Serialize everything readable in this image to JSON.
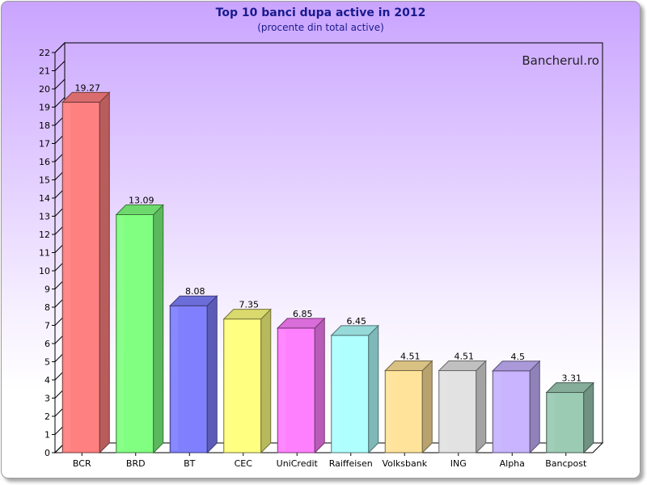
{
  "chart_data": {
    "type": "bar",
    "title": "Top 10 banci dupa active in 2012",
    "subtitle": "(procente din total active)",
    "watermark": "Bancherul.ro",
    "categories": [
      "BCR",
      "BRD",
      "BT",
      "CEC",
      "UniCredit",
      "Raiffeisen",
      "Volksbank",
      "ING",
      "Alpha",
      "Bancpost"
    ],
    "values": [
      19.27,
      13.09,
      8.08,
      7.35,
      6.85,
      6.45,
      4.51,
      4.51,
      4.5,
      3.31
    ],
    "value_labels": [
      "19.27",
      "13.09",
      "8.08",
      "7.35",
      "6.85",
      "6.45",
      "4.51",
      "4.51",
      "4.5",
      "3.31"
    ],
    "colors": [
      "#ff8080",
      "#80ff80",
      "#8080ff",
      "#ffff80",
      "#ff80ff",
      "#b0ffff",
      "#ffe39a",
      "#e2e2e2",
      "#c8b4ff",
      "#9ccbb4"
    ],
    "ylim": [
      0,
      22
    ],
    "yticks": [
      "0",
      "1",
      "2",
      "3",
      "4",
      "5",
      "6",
      "7",
      "8",
      "9",
      "10",
      "11",
      "12",
      "13",
      "14",
      "15",
      "16",
      "17",
      "18",
      "19",
      "20",
      "21",
      "22"
    ],
    "xlabel": "",
    "ylabel": "",
    "grid": false,
    "legend": "none",
    "three_d": true
  }
}
